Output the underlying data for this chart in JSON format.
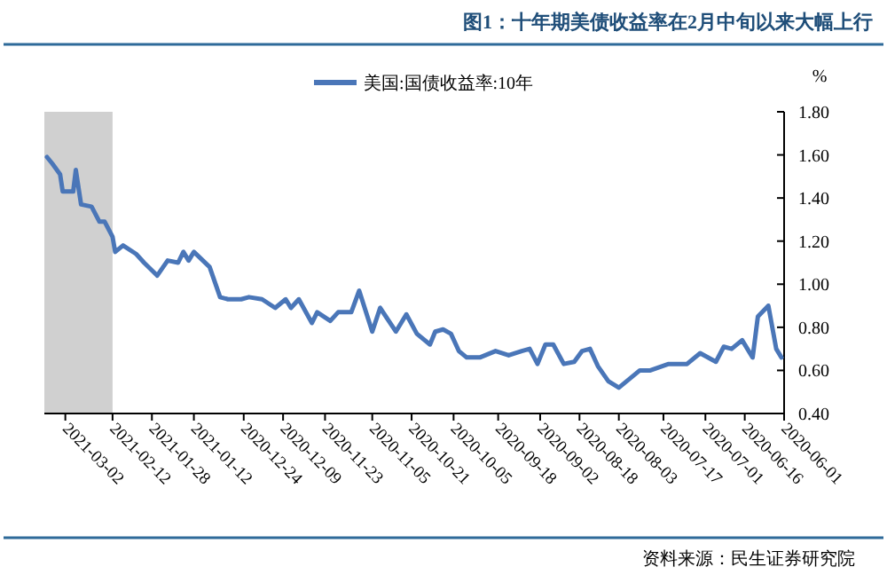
{
  "chart_data": {
    "type": "line",
    "title": "图1：十年期美债收益率在2月中旬以来大幅上行",
    "ylabel": "%",
    "x": [
      "2020-06-02",
      "2020-06-04",
      "2020-06-07",
      "2020-06-11",
      "2020-06-13",
      "2020-06-17",
      "2020-06-21",
      "2020-06-24",
      "2020-06-27",
      "2020-07-03",
      "2020-07-08",
      "2020-07-15",
      "2020-07-22",
      "2020-07-26",
      "2020-08-03",
      "2020-08-07",
      "2020-08-11",
      "2020-08-14",
      "2020-08-17",
      "2020-08-20",
      "2020-08-24",
      "2020-08-28",
      "2020-08-31",
      "2020-09-03",
      "2020-09-06",
      "2020-09-09",
      "2020-09-14",
      "2020-09-19",
      "2020-09-25",
      "2020-09-30",
      "2020-10-03",
      "2020-10-06",
      "2020-10-09",
      "2020-10-12",
      "2020-10-14",
      "2020-10-19",
      "2020-10-23",
      "2020-10-27",
      "2020-11-02",
      "2020-11-05",
      "2020-11-10",
      "2020-11-13",
      "2020-11-18",
      "2020-11-21",
      "2020-11-26",
      "2020-11-28",
      "2020-12-03",
      "2020-12-06",
      "2020-12-08",
      "2020-12-12",
      "2020-12-17",
      "2020-12-22",
      "2020-12-25",
      "2020-12-30",
      "2021-01-02",
      "2021-01-06",
      "2021-01-12",
      "2021-01-14",
      "2021-01-16",
      "2021-01-18",
      "2021-01-22",
      "2021-01-26",
      "2021-01-31",
      "2021-02-03",
      "2021-02-08",
      "2021-02-11",
      "2021-02-12",
      "2021-02-15",
      "2021-02-17",
      "2021-02-20",
      "2021-02-24",
      "2021-02-26",
      "2021-02-27",
      "2021-03-03",
      "2021-03-04",
      "2021-03-07",
      "2021-03-09"
    ],
    "series": [
      {
        "name": "美国:国债收益率:10年",
        "color": "#4a76b8",
        "values": [
          0.66,
          0.7,
          0.9,
          0.85,
          0.66,
          0.74,
          0.7,
          0.71,
          0.64,
          0.68,
          0.63,
          0.63,
          0.6,
          0.6,
          0.52,
          0.55,
          0.62,
          0.7,
          0.69,
          0.64,
          0.63,
          0.72,
          0.72,
          0.63,
          0.7,
          0.69,
          0.67,
          0.69,
          0.66,
          0.66,
          0.69,
          0.77,
          0.79,
          0.78,
          0.72,
          0.77,
          0.86,
          0.78,
          0.89,
          0.78,
          0.97,
          0.87,
          0.87,
          0.83,
          0.87,
          0.82,
          0.93,
          0.89,
          0.93,
          0.89,
          0.93,
          0.94,
          0.93,
          0.93,
          0.94,
          1.08,
          1.15,
          1.11,
          1.15,
          1.1,
          1.11,
          1.04,
          1.1,
          1.14,
          1.18,
          1.15,
          1.22,
          1.29,
          1.29,
          1.36,
          1.37,
          1.53,
          1.43,
          1.43,
          1.51,
          1.56,
          1.59
        ]
      }
    ],
    "xlim": [
      "2021-03-10",
      "2020-06-01"
    ],
    "xticks": [
      "2021-03-02",
      "2021-02-12",
      "2021-01-28",
      "2021-01-12",
      "2020-12-24",
      "2020-12-09",
      "2020-11-23",
      "2020-11-05",
      "2020-10-21",
      "2020-10-05",
      "2020-09-18",
      "2020-09-02",
      "2020-08-18",
      "2020-08-03",
      "2020-07-17",
      "2020-07-01",
      "2020-06-16",
      "2020-06-01"
    ],
    "ylim": [
      0.4,
      1.8
    ],
    "yticks": [
      {
        "value": 0.4,
        "label": "0.40"
      },
      {
        "value": 0.6,
        "label": "0.60"
      },
      {
        "value": 0.8,
        "label": "0.80"
      },
      {
        "value": 1.0,
        "label": "1.00"
      },
      {
        "value": 1.2,
        "label": "1.20"
      },
      {
        "value": 1.4,
        "label": "1.40"
      },
      {
        "value": 1.6,
        "label": "1.60"
      },
      {
        "value": 1.8,
        "label": "1.80"
      }
    ],
    "bands": [
      {
        "axis": "x",
        "from": "2021-02-12",
        "to": "2021-03-10",
        "color": "#d0d0d0"
      }
    ],
    "annotations": [
      "资料来源：民生证券研究院"
    ],
    "legend": "top",
    "grid": false
  }
}
